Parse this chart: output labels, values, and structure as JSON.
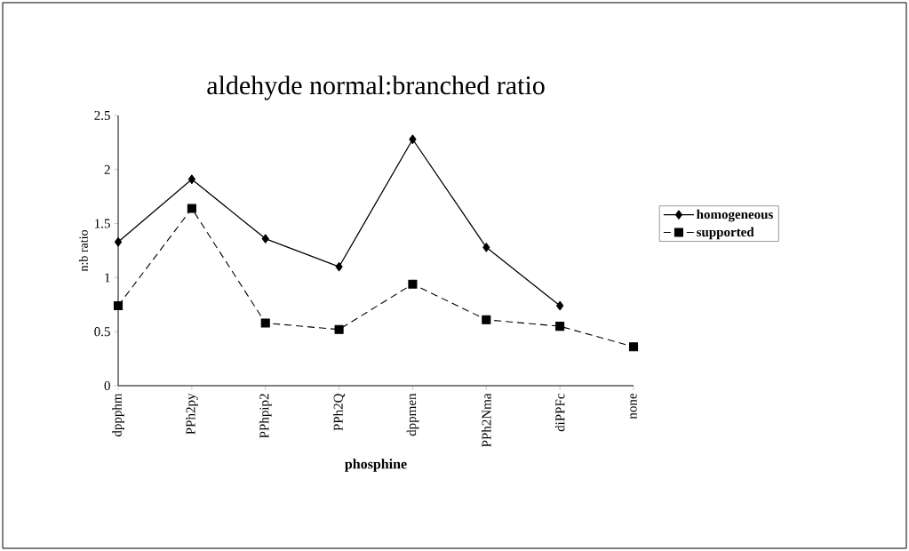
{
  "chart_data": {
    "type": "line",
    "title": "aldehyde normal:branched ratio",
    "xlabel": "phosphine",
    "ylabel": "n:b ratio",
    "categories": [
      "dppphm",
      "PPh2py",
      "PPhpip2",
      "PPh2Q",
      "dppmen",
      "PPh2Nma",
      "diPPFc",
      "none"
    ],
    "series": [
      {
        "name": "homogeneous",
        "color": "#000000",
        "marker": "diamond",
        "line_style": "solid",
        "values": [
          1.33,
          1.91,
          1.36,
          1.1,
          2.28,
          1.28,
          0.74,
          null
        ]
      },
      {
        "name": "supported",
        "color": "#000000",
        "marker": "square",
        "line_style": "dashed",
        "values": [
          0.74,
          1.64,
          0.58,
          0.52,
          0.94,
          0.61,
          0.55,
          0.36
        ]
      }
    ],
    "ylim": [
      0,
      2.5
    ],
    "yticks": [
      0,
      0.5,
      1,
      1.5,
      2,
      2.5
    ],
    "grid": false,
    "legend": "right"
  }
}
